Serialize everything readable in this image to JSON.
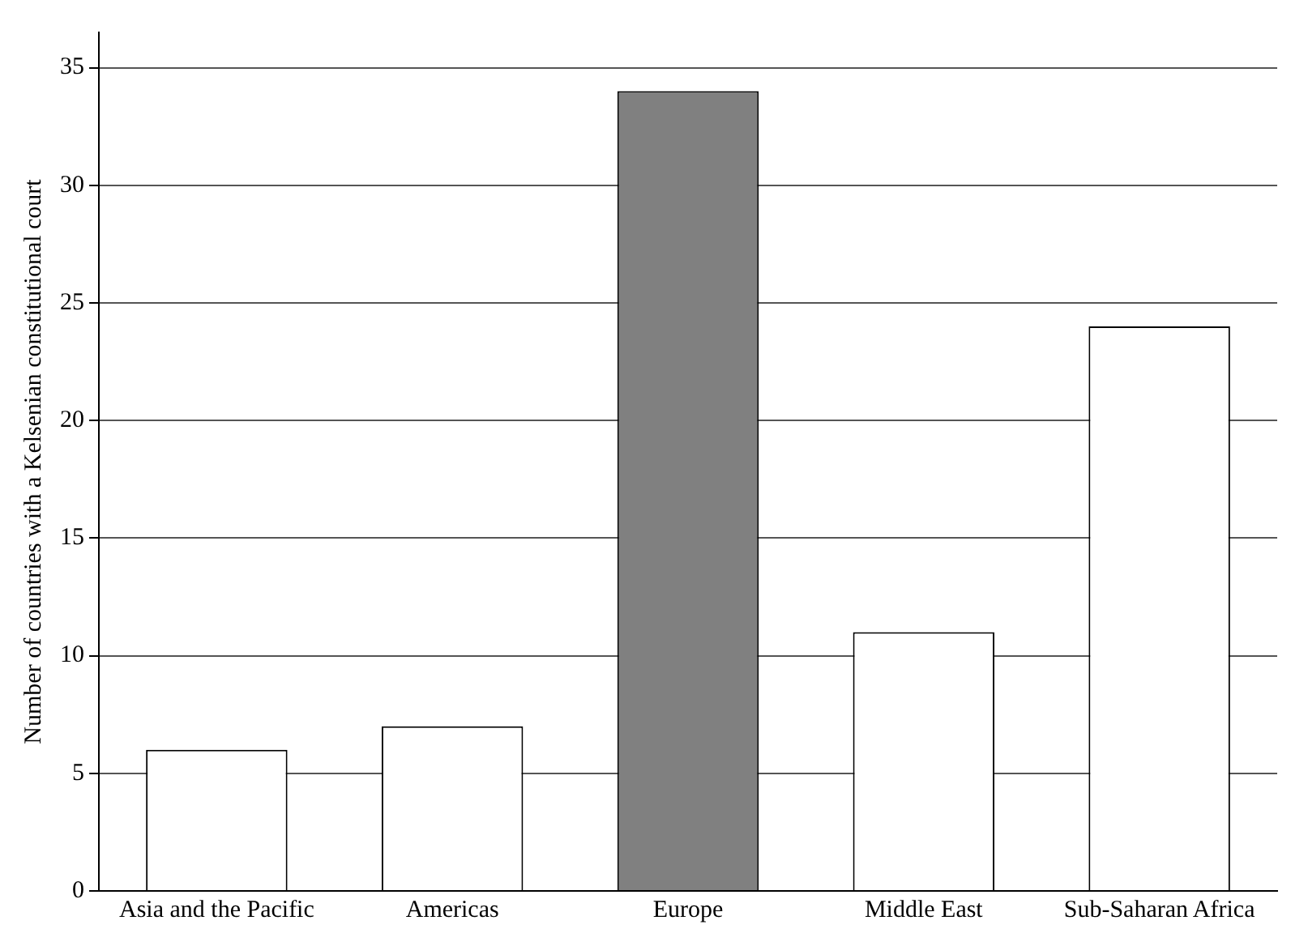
{
  "chart_data": {
    "type": "bar",
    "ylabel": "Number of countries with a Kelsenian constitutional court",
    "categories": [
      "Asia and the Pacific",
      "Americas",
      "Europe",
      "Middle East",
      "Sub-Saharan Africa"
    ],
    "values": [
      6,
      7,
      34,
      11,
      24
    ],
    "colors": [
      "#ffffff",
      "#ffffff",
      "#808080",
      "#ffffff",
      "#ffffff"
    ],
    "ylim": [
      0,
      36.5
    ],
    "yticks": [
      0,
      5,
      10,
      15,
      20,
      25,
      30,
      35
    ],
    "grid": "y"
  }
}
